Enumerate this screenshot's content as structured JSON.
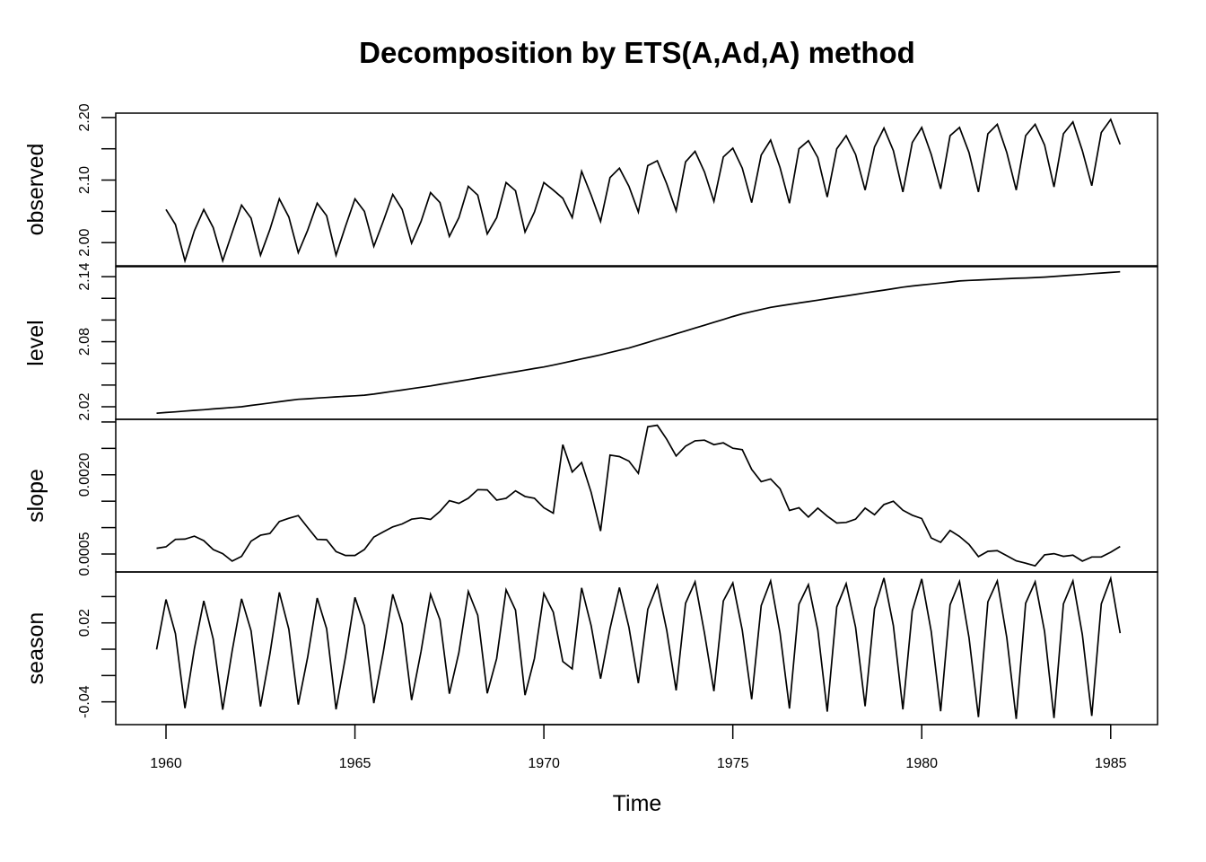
{
  "chart_data": {
    "type": "line",
    "title": "Decomposition by ETS(A,Ad,A) method",
    "xlabel": "Time",
    "xlim": [
      1958.67,
      1986.24
    ],
    "x_ticks": [
      1960,
      1965,
      1970,
      1975,
      1980,
      1985
    ],
    "x_tick_labels": [
      "1960",
      "1965",
      "1970",
      "1975",
      "1980",
      "1985"
    ],
    "frequency": 4,
    "panels": [
      {
        "name": "observed",
        "ylabel": "observed",
        "start": 1960.0,
        "ylim": [
          1.963,
          2.207
        ],
        "y_ticks": [
          2.0,
          2.05,
          2.1,
          2.15,
          2.2
        ],
        "y_tick_labels": {
          "2": "2.00",
          "2.1": "2.10",
          "2.2": "2.20"
        },
        "values": [
          2.053,
          2.029,
          1.971,
          2.019,
          2.053,
          2.024,
          1.971,
          2.016,
          2.06,
          2.039,
          1.98,
          2.021,
          2.07,
          2.041,
          1.984,
          2.02,
          2.063,
          2.043,
          1.98,
          2.026,
          2.07,
          2.05,
          1.994,
          2.034,
          2.077,
          2.053,
          1.999,
          2.034,
          2.08,
          2.064,
          2.01,
          2.04,
          2.09,
          2.076,
          2.014,
          2.04,
          2.096,
          2.083,
          2.017,
          2.049,
          2.096,
          2.084,
          2.071,
          2.04,
          2.114,
          2.076,
          2.034,
          2.104,
          2.119,
          2.09,
          2.049,
          2.123,
          2.131,
          2.094,
          2.051,
          2.129,
          2.146,
          2.113,
          2.066,
          2.137,
          2.151,
          2.119,
          2.064,
          2.14,
          2.164,
          2.12,
          2.063,
          2.15,
          2.163,
          2.136,
          2.073,
          2.15,
          2.171,
          2.141,
          2.084,
          2.153,
          2.183,
          2.147,
          2.081,
          2.16,
          2.184,
          2.141,
          2.086,
          2.171,
          2.184,
          2.144,
          2.081,
          2.174,
          2.189,
          2.144,
          2.084,
          2.171,
          2.189,
          2.156,
          2.089,
          2.174,
          2.193,
          2.147,
          2.091,
          2.176,
          2.197,
          2.157
        ]
      },
      {
        "name": "level",
        "ylabel": "level",
        "start": 1959.75,
        "ylim": [
          2.0084,
          2.1492
        ],
        "y_ticks": [
          2.02,
          2.04,
          2.06,
          2.08,
          2.1,
          2.12,
          2.14
        ],
        "y_tick_labels": {
          "2.02": "2.02",
          "2.08": "2.08",
          "2.14": "2.14"
        },
        "values": [
          2.014,
          2.0147,
          2.0153,
          2.016,
          2.0167,
          2.0173,
          2.018,
          2.0187,
          2.0193,
          2.02,
          2.0212,
          2.0223,
          2.0235,
          2.0246,
          2.0258,
          2.0269,
          2.0274,
          2.028,
          2.0285,
          2.0291,
          2.0296,
          2.0301,
          2.0307,
          2.0317,
          2.0329,
          2.0342,
          2.0354,
          2.0367,
          2.038,
          2.0392,
          2.0407,
          2.0421,
          2.0436,
          2.045,
          2.0465,
          2.0479,
          2.0494,
          2.0509,
          2.0523,
          2.0538,
          2.0553,
          2.0567,
          2.0584,
          2.0603,
          2.0622,
          2.0641,
          2.066,
          2.0679,
          2.07,
          2.0721,
          2.0742,
          2.0768,
          2.0794,
          2.0821,
          2.0847,
          2.0873,
          2.0899,
          2.0926,
          2.0952,
          2.0979,
          2.1005,
          2.1032,
          2.1057,
          2.1077,
          2.1097,
          2.1117,
          2.1131,
          2.1144,
          2.1157,
          2.117,
          2.1183,
          2.1197,
          2.121,
          2.1223,
          2.1236,
          2.125,
          2.1263,
          2.1276,
          2.1289,
          2.1303,
          2.1314,
          2.1323,
          2.1332,
          2.1341,
          2.135,
          2.136,
          2.1365,
          2.1369,
          2.1373,
          2.1377,
          2.1381,
          2.1385,
          2.1388,
          2.1392,
          2.1396,
          2.1402,
          2.1408,
          2.1414,
          2.142,
          2.1427,
          2.1433,
          2.1439,
          2.1445
        ]
      },
      {
        "name": "slope",
        "ylabel": "slope",
        "start": 1959.75,
        "ylim": [
          0.00016,
          0.00305
        ],
        "y_ticks": [
          0.0005,
          0.001,
          0.0015,
          0.002,
          0.0025,
          0.003
        ],
        "y_tick_labels": {
          "0.0005": "0.0005",
          "0.002": "0.0020"
        },
        "values": [
          0.000608,
          0.000636,
          0.000777,
          0.000783,
          0.000839,
          0.000754,
          0.000585,
          0.000506,
          0.000365,
          0.000455,
          0.000743,
          0.000856,
          0.00089,
          0.001115,
          0.001177,
          0.001228,
          0.001002,
          0.000777,
          0.000771,
          0.000546,
          0.000472,
          0.000472,
          0.000585,
          0.000822,
          0.000918,
          0.001014,
          0.00107,
          0.00116,
          0.001183,
          0.001155,
          0.001307,
          0.00151,
          0.001459,
          0.001555,
          0.001719,
          0.001713,
          0.001521,
          0.001555,
          0.001696,
          0.001589,
          0.001555,
          0.001375,
          0.001273,
          0.00257,
          0.002052,
          0.002232,
          0.001668,
          0.000935,
          0.002373,
          0.002345,
          0.00226,
          0.002029,
          0.002909,
          0.002937,
          0.002672,
          0.002356,
          0.002542,
          0.002644,
          0.002655,
          0.00257,
          0.002604,
          0.002503,
          0.002475,
          0.002102,
          0.001871,
          0.001922,
          0.001736,
          0.001324,
          0.001375,
          0.0012,
          0.001369,
          0.001217,
          0.001087,
          0.001098,
          0.00116,
          0.001369,
          0.001245,
          0.001437,
          0.001499,
          0.00133,
          0.001234,
          0.001172,
          0.000805,
          0.000721,
          0.000946,
          0.000833,
          0.000681,
          0.00045,
          0.000551,
          0.000563,
          0.000467,
          0.000371,
          0.000326,
          0.000275,
          0.000484,
          0.000506,
          0.000455,
          0.000478,
          0.000365,
          0.000444,
          0.000444,
          0.000534,
          0.000642
        ]
      },
      {
        "name": "season",
        "ylabel": "season",
        "start": 1959.75,
        "ylim": [
          -0.0573,
          0.0587
        ],
        "y_ticks": [
          -0.04,
          -0.02,
          0.0,
          0.02,
          0.04
        ],
        "y_tick_labels": {
          "-0.04": "-0.04",
          "0.02": "0.02"
        },
        "values": [
          -0.0002,
          0.0378,
          0.0118,
          -0.0448,
          0.0004,
          0.0367,
          0.0077,
          -0.046,
          -0.0014,
          0.0383,
          0.014,
          -0.0435,
          -0.0036,
          0.0432,
          0.0152,
          -0.0421,
          -0.0059,
          0.0389,
          0.0156,
          -0.0457,
          -0.0059,
          0.0394,
          0.0179,
          -0.041,
          -0.0025,
          0.0417,
          0.019,
          -0.0387,
          -0.0014,
          0.0417,
          0.0224,
          -0.0338,
          -0.0025,
          0.0439,
          0.0258,
          -0.0335,
          -0.007,
          0.0451,
          0.0297,
          -0.0349,
          -0.007,
          0.0423,
          0.0281,
          -0.0093,
          -0.0149,
          0.0466,
          0.0179,
          -0.0224,
          0.0156,
          0.0469,
          0.0167,
          -0.0258,
          0.0303,
          0.0485,
          0.0145,
          -0.0313,
          0.0349,
          0.0512,
          0.0122,
          -0.0319,
          0.0367,
          0.0503,
          0.0145,
          -0.038,
          0.0331,
          0.0519,
          0.0122,
          -0.0451,
          0.0342,
          0.0491,
          0.0145,
          -0.0474,
          0.0321,
          0.0498,
          0.0167,
          -0.0433,
          0.0308,
          0.0541,
          0.0179,
          -0.0457,
          0.0292,
          0.0534,
          0.0134,
          -0.0471,
          0.0337,
          0.0514,
          0.0088,
          -0.0516,
          0.036,
          0.0519,
          0.0088,
          -0.053,
          0.0349,
          0.0512,
          0.0134,
          -0.0523,
          0.0344,
          0.0519,
          0.0111,
          -0.0507,
          0.0344,
          0.0537,
          0.0122
        ]
      }
    ]
  }
}
